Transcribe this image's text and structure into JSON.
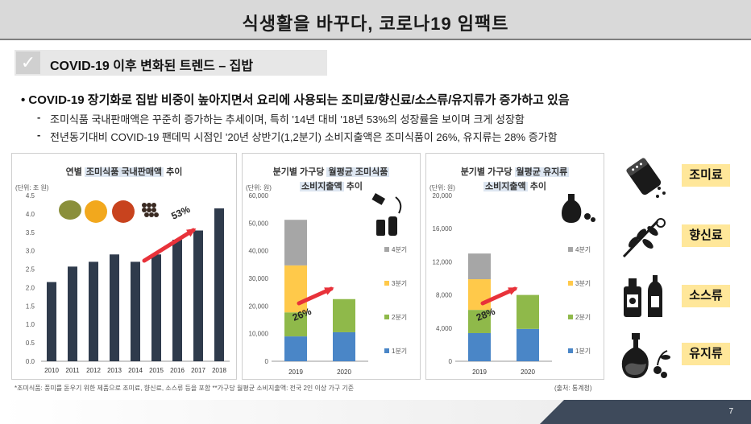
{
  "title": "식생활을 바꾸다, 코로나19 임팩트",
  "subhead": "COVID-19 이후 변화된 트렌드 – 집밥",
  "bullets": {
    "main": "•  COVID-19 장기화로 집밥 비중이 높아지면서 요리에 사용되는 조미료/향신료/소스류/유지류가 증가하고 있음",
    "sub1": "조미식품 국내판매액은 꾸준히 증가하는 추세이며, 특히 '14년 대비 '18년 53%의 성장률을 보이며 크게 성장함",
    "sub2": "전년동기대비 COVID-19 팬데믹 시점인 '20년 상반기(1,2분기) 소비지출액은 조미식품이 26%, 유지류는 28% 증가함",
    "dash": "-"
  },
  "chart_data": [
    {
      "type": "bar",
      "title_pre": "연별 ",
      "title_hl": "조미식품 국내판매액",
      "title_post": " 추이",
      "unit": "(단위: 조 원)",
      "categories": [
        "2010",
        "2011",
        "2012",
        "2013",
        "2014",
        "2015",
        "2016",
        "2017",
        "2018"
      ],
      "values": [
        2.15,
        2.57,
        2.7,
        2.9,
        2.7,
        2.9,
        3.3,
        3.55,
        4.15
      ],
      "ylim": [
        0,
        4.5
      ],
      "yticks": [
        "0.0",
        "0.5",
        "1.0",
        "1.5",
        "2.0",
        "2.5",
        "3.0",
        "3.5",
        "4.0",
        "4.5"
      ],
      "annotation": "53%",
      "color": "#2f3b4c"
    },
    {
      "type": "bar",
      "stacked": true,
      "title_pre": "분기별 가구당 ",
      "title_hl": "월평균 조미식품",
      "title2_hl": "소비지출액",
      "title2_post": " 추이",
      "unit": "(단위: 원)",
      "categories": [
        "2019",
        "2020"
      ],
      "series": [
        {
          "name": "1분기",
          "values": [
            9000,
            10500
          ],
          "color": "#4a86c7"
        },
        {
          "name": "2분기",
          "values": [
            8700,
            12000
          ],
          "color": "#8fb94a"
        },
        {
          "name": "3분기",
          "values": [
            17000,
            0
          ],
          "color": "#ffc94a"
        },
        {
          "name": "4분기",
          "values": [
            16500,
            0
          ],
          "color": "#a6a6a6"
        }
      ],
      "ylim": [
        0,
        60000
      ],
      "yticks": [
        "0",
        "10,000",
        "20,000",
        "30,000",
        "40,000",
        "50,000",
        "60,000"
      ],
      "annotation": "26%"
    },
    {
      "type": "bar",
      "stacked": true,
      "title_pre": "분기별 가구당 ",
      "title_hl": "월평균 유지류",
      "title2_hl": "소비지출액",
      "title2_post": " 추이",
      "unit": "(단위: 원)",
      "categories": [
        "2019",
        "2020"
      ],
      "series": [
        {
          "name": "1분기",
          "values": [
            3400,
            3900
          ],
          "color": "#4a86c7"
        },
        {
          "name": "2분기",
          "values": [
            2800,
            4100
          ],
          "color": "#8fb94a"
        },
        {
          "name": "3분기",
          "values": [
            3700,
            0
          ],
          "color": "#ffc94a"
        },
        {
          "name": "4분기",
          "values": [
            3100,
            0
          ],
          "color": "#a6a6a6"
        }
      ],
      "ylim": [
        0,
        20000
      ],
      "yticks": [
        "0",
        "4,000",
        "8,000",
        "12,000",
        "16,000",
        "20,000"
      ],
      "annotation": "28%"
    }
  ],
  "footnotes": {
    "left": "*조미식품: 풍미를 돋우기 위한 제품으로 조미료, 향신료, 소스류 등을 포함   **가구당 월평균 소비지출액: 전국 2인 이상 가구 기준",
    "right": "(출처: 통계청)"
  },
  "side_labels": [
    "조미료",
    "향신료",
    "소스류",
    "유지류"
  ],
  "icons": [
    "salt-shaker-icon",
    "herb-icon",
    "sauce-bottles-icon",
    "oil-bottle-icon"
  ],
  "page_number": "7",
  "colors": {
    "highlight": "#dde6f1",
    "side_label_bg": "#ffe79a",
    "arrow": "#e8323a",
    "dark_bar": "#2f3b4c"
  }
}
